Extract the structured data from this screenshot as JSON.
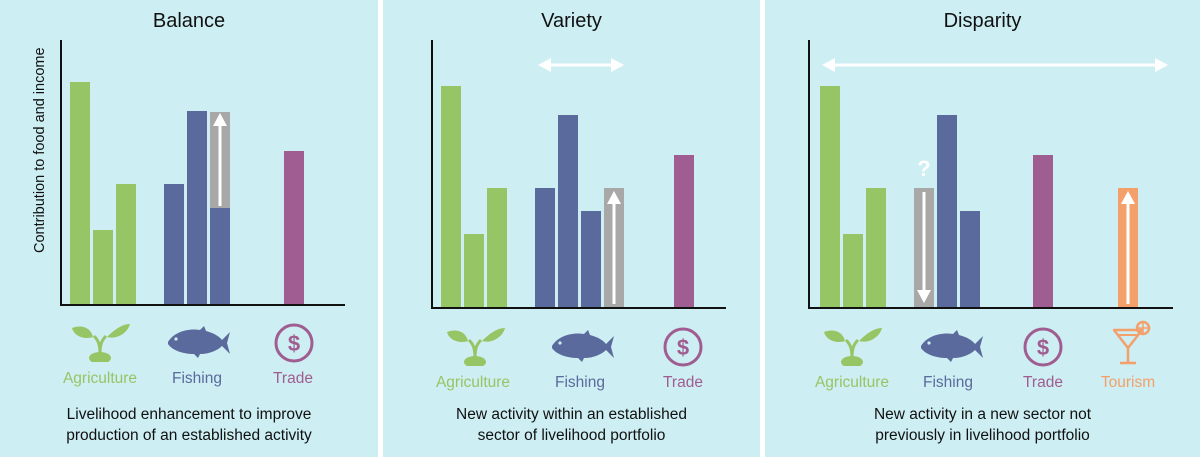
{
  "ylabel": "Contribution to food and income",
  "colors": {
    "agriculture": "#96c565",
    "fishing": "#5a6a9c",
    "trade": "#a05d91",
    "tourism": "#f3a06b",
    "new": "#a8a8a8",
    "background": "#cdeef2"
  },
  "panels": [
    {
      "title": "Balance",
      "caption_line1": "Livelihood enhancement to improve",
      "caption_line2": "production of an established activity",
      "labels": {
        "agriculture": "Agriculture",
        "fishing": "Fishing",
        "trade": "Trade"
      }
    },
    {
      "title": "Variety",
      "caption_line1": "New activity within an established",
      "caption_line2": "sector of livelihood portfolio",
      "labels": {
        "agriculture": "Agriculture",
        "fishing": "Fishing",
        "trade": "Trade"
      }
    },
    {
      "title": "Disparity",
      "caption_line1": "New activity in a new sector not",
      "caption_line2": "previously in livelihood portfolio",
      "labels": {
        "agriculture": "Agriculture",
        "fishing": "Fishing",
        "trade": "Trade",
        "tourism": "Tourism"
      },
      "question_mark": "?"
    }
  ],
  "icons": {
    "dollar": "$"
  }
}
